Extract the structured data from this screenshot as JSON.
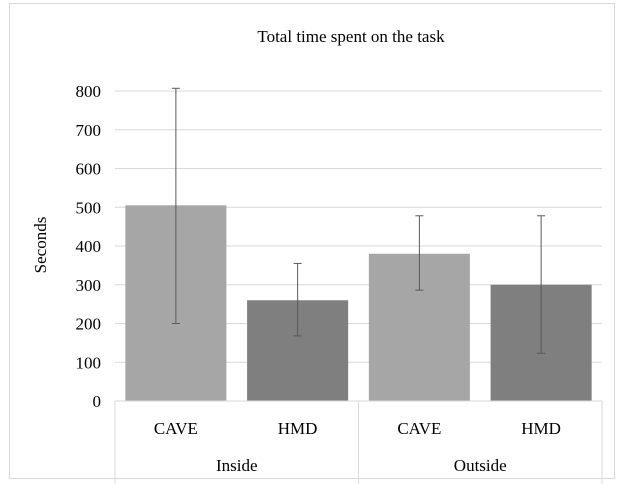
{
  "chart_data": {
    "type": "bar",
    "title": "Total time spent on the task",
    "ylabel": "Seconds",
    "xlabel": "",
    "ylim": [
      0,
      800
    ],
    "yticks": [
      0,
      100,
      200,
      300,
      400,
      500,
      600,
      700,
      800
    ],
    "groups": [
      {
        "label": "Inside",
        "categories": [
          "CAVE",
          "HMD"
        ]
      },
      {
        "label": "Outside",
        "categories": [
          "CAVE",
          "HMD"
        ]
      }
    ],
    "categories": [
      "CAVE",
      "HMD",
      "CAVE",
      "HMD"
    ],
    "values": [
      505,
      260,
      380,
      300
    ],
    "error_bars": [
      {
        "low": 200,
        "high": 807
      },
      {
        "low": 168,
        "high": 355
      },
      {
        "low": 286,
        "high": 478
      },
      {
        "low": 123,
        "high": 478
      }
    ],
    "colors": [
      "#a6a6a6",
      "#7f7f7f",
      "#a6a6a6",
      "#7f7f7f"
    ],
    "grid": true,
    "legend": "none"
  }
}
